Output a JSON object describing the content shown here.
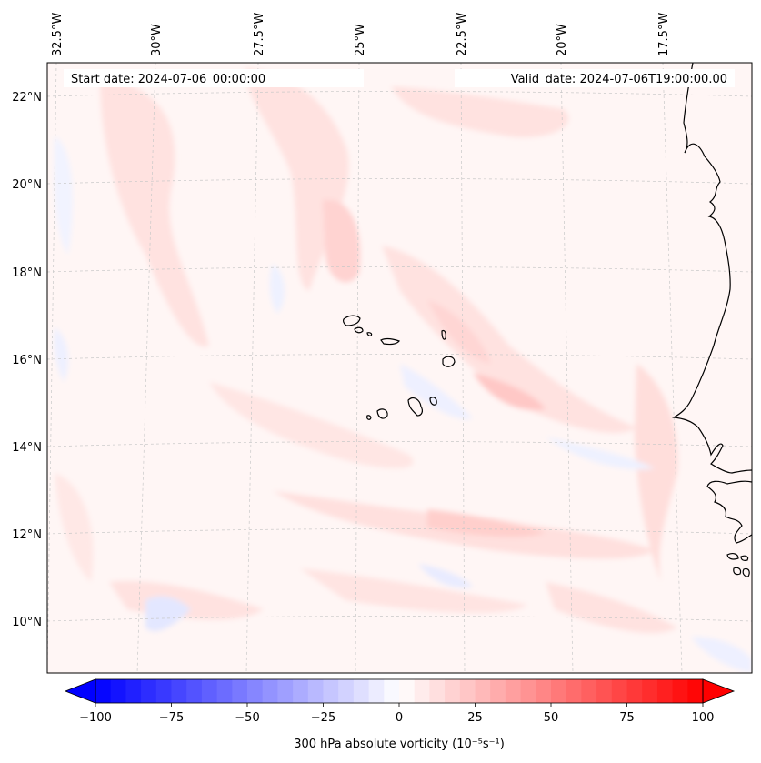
{
  "map": {
    "start_date": "Start date: 2024-07-06_00:00:00",
    "valid_date": "Valid_date: 2024-07-06T19:00:00.00",
    "lon_labels": [
      "32.5°W",
      "30°W",
      "27.5°W",
      "25°W",
      "22.5°W",
      "20°W",
      "17.5°W"
    ],
    "lat_labels": [
      "22°N",
      "20°N",
      "18°N",
      "16°N",
      "14°N",
      "12°N",
      "10°N"
    ],
    "field": "300 hPa absolute vorticity",
    "colormap": "bwr",
    "colors": {
      "negative": "#0000ff",
      "neutral": "#ffffff",
      "positive": "#ff0000",
      "coast": "#000000"
    }
  },
  "colorbar": {
    "label": "300 hPa absolute vorticity (10⁻⁵s⁻¹)",
    "ticks": [
      "−100",
      "−75",
      "−50",
      "−25",
      "0",
      "25",
      "50",
      "75",
      "100"
    ],
    "min": -100,
    "max": 100,
    "extend": "both"
  }
}
